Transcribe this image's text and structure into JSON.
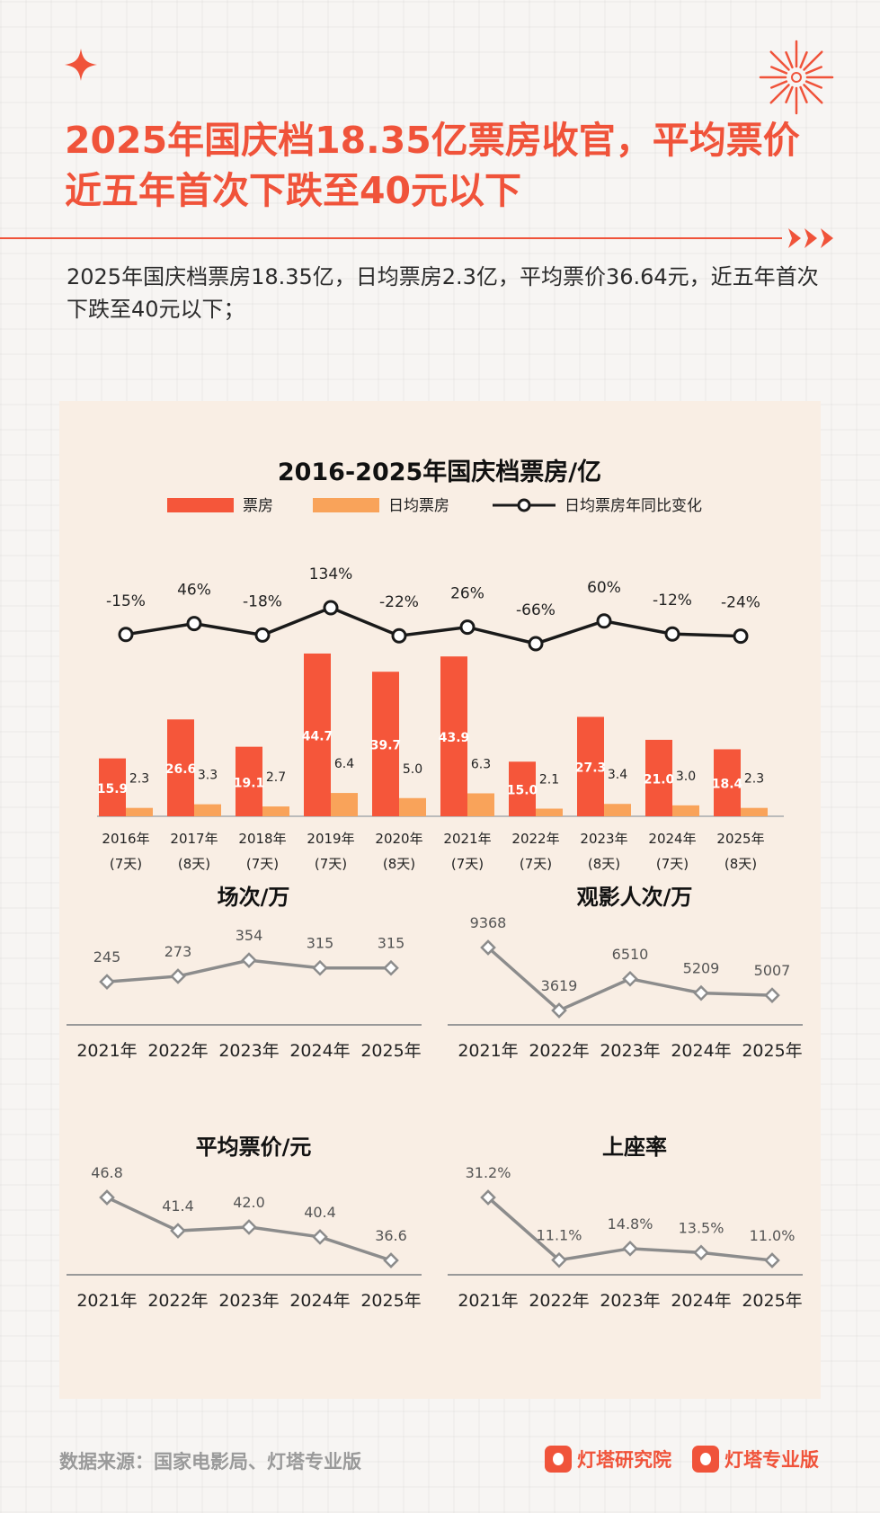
{
  "header": {
    "title": "2025年国庆档18.35亿票房收官，平均票价近五年首次下跌至40元以下",
    "subtitle": "2025年国庆档票房18.35亿，日均票房2.3亿，平均票价36.64元，近五年首次下跌至40元以下；"
  },
  "colors": {
    "accent": "#f0533a",
    "bar_primary": "#f5563a",
    "bar_secondary": "#f9a35a",
    "line_main": "#1a1a1a",
    "line_small": "#8c8c8c",
    "panel_bg": "#f9eee4"
  },
  "icons": [
    "star-icon",
    "firework-icon",
    "triple-arrow-icon",
    "brand-logo-icon"
  ],
  "chart_data": [
    {
      "type": "bar",
      "title": "2016-2025年国庆档票房/亿",
      "categories": [
        "2016年",
        "2017年",
        "2018年",
        "2019年",
        "2020年",
        "2021年",
        "2022年",
        "2023年",
        "2024年",
        "2025年"
      ],
      "sublabels": [
        "(7天)",
        "(8天)",
        "(7天)",
        "(7天)",
        "(8天)",
        "(7天)",
        "(7天)",
        "(8天)",
        "(7天)",
        "(8天)"
      ],
      "series": [
        {
          "name": "票房",
          "values": [
            15.9,
            26.6,
            19.1,
            44.7,
            39.7,
            43.9,
            15.0,
            27.3,
            21.0,
            18.4
          ]
        },
        {
          "name": "日均票房",
          "values": [
            2.3,
            3.3,
            2.7,
            6.4,
            5.0,
            6.3,
            2.1,
            3.4,
            3.0,
            2.3
          ]
        },
        {
          "name": "日均票房年同比变化",
          "type": "line",
          "values": [
            -15,
            46,
            -18,
            134,
            -22,
            26,
            -66,
            60,
            -12,
            -24
          ],
          "labels": [
            "-15%",
            "46%",
            "-18%",
            "134%",
            "-22%",
            "26%",
            "-66%",
            "60%",
            "-12%",
            "-24%"
          ]
        }
      ],
      "legend": "top"
    },
    {
      "type": "line",
      "title": "场次/万",
      "x": [
        "2021年",
        "2022年",
        "2023年",
        "2024年",
        "2025年"
      ],
      "values": [
        245,
        273,
        354,
        315,
        315
      ],
      "labels": [
        "245",
        "273",
        "354",
        "315",
        "315"
      ]
    },
    {
      "type": "line",
      "title": "观影人次/万",
      "x": [
        "2021年",
        "2022年",
        "2023年",
        "2024年",
        "2025年"
      ],
      "values": [
        9368,
        3619,
        6510,
        5209,
        5007
      ],
      "labels": [
        "9368",
        "3619",
        "6510",
        "5209",
        "5007"
      ]
    },
    {
      "type": "line",
      "title": "平均票价/元",
      "x": [
        "2021年",
        "2022年",
        "2023年",
        "2024年",
        "2025年"
      ],
      "values": [
        46.8,
        41.4,
        42.0,
        40.4,
        36.6
      ],
      "labels": [
        "46.8",
        "41.4",
        "42.0",
        "40.4",
        "36.6"
      ]
    },
    {
      "type": "line",
      "title": "上座率",
      "x": [
        "2021年",
        "2022年",
        "2023年",
        "2024年",
        "2025年"
      ],
      "values": [
        31.2,
        11.1,
        14.8,
        13.5,
        11.0
      ],
      "labels": [
        "31.2%",
        "11.1%",
        "14.8%",
        "13.5%",
        "11.0%"
      ]
    }
  ],
  "footer": {
    "source": "数据来源：国家电影局、灯塔专业版",
    "brand1": "灯塔研究院",
    "brand2": "灯塔专业版"
  }
}
